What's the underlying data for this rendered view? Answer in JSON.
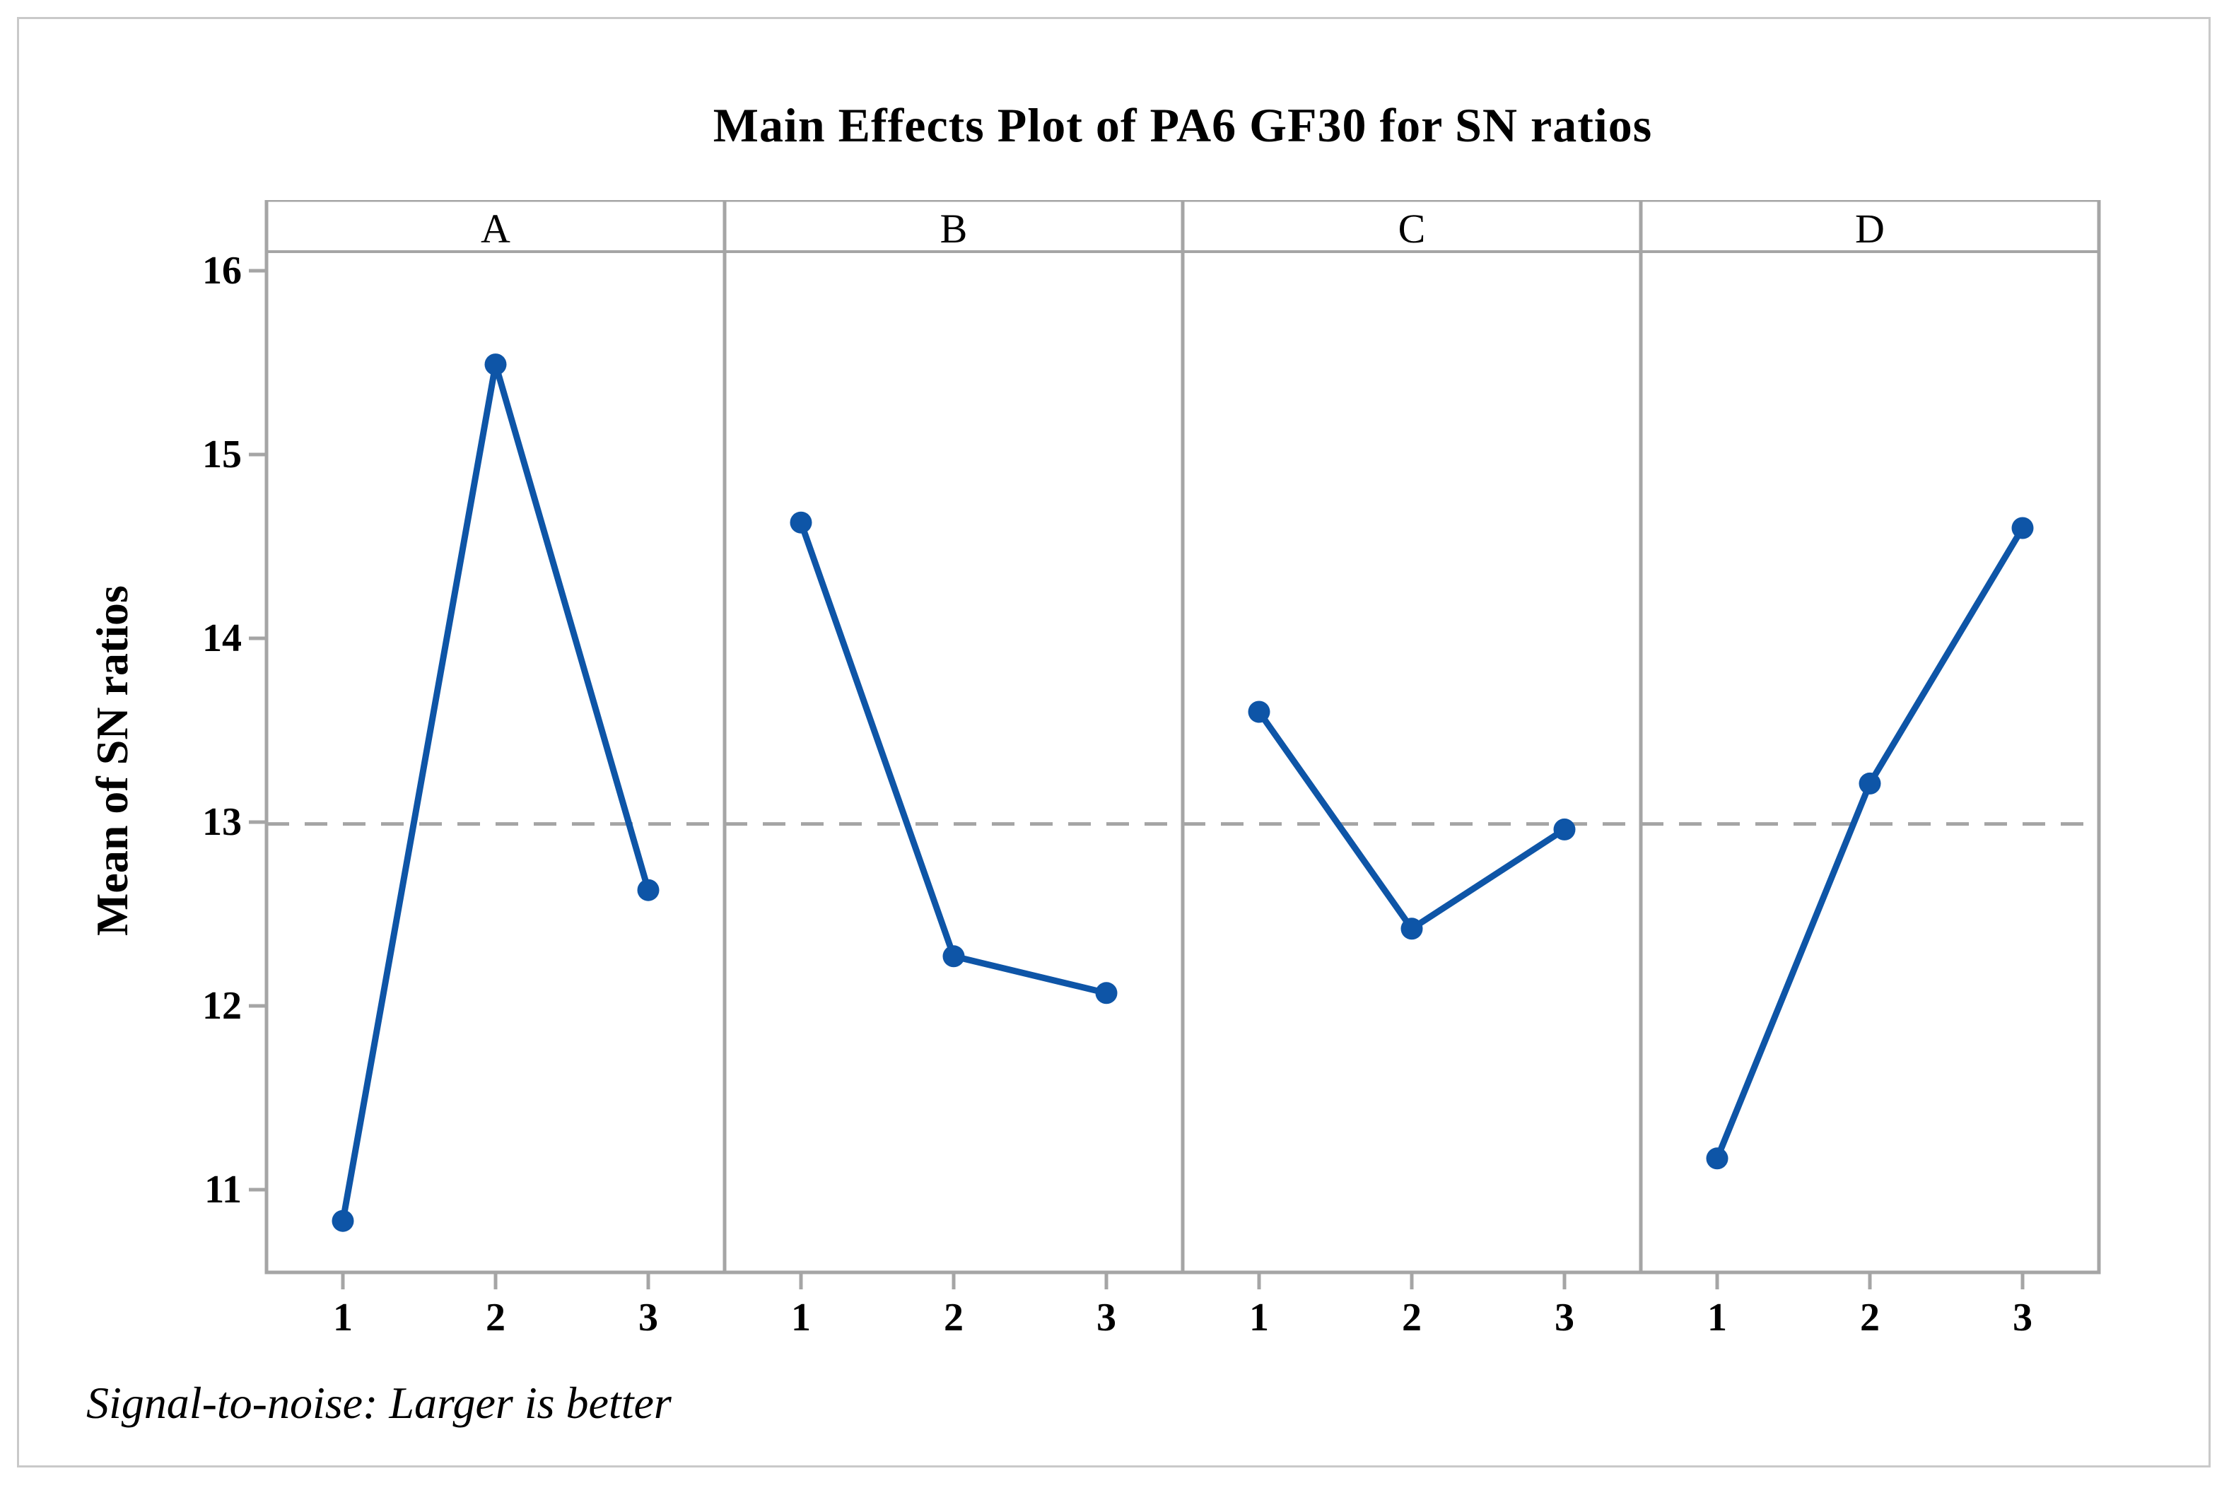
{
  "figure": {
    "title": "Main Effects Plot of PA6 GF30 for SN ratios",
    "y_axis_label": "Mean of SN ratios",
    "footnote": "Signal-to-noise: Larger is better"
  },
  "chart_data": {
    "type": "line",
    "title": "Main Effects Plot of PA6 GF30 for SN ratios",
    "xlabel": "",
    "ylabel": "Mean of SN ratios",
    "footnote": "Signal-to-noise: Larger is better",
    "x_categories": [
      "1",
      "2",
      "3"
    ],
    "panels": [
      {
        "label": "A",
        "values": [
          10.83,
          15.49,
          12.63
        ]
      },
      {
        "label": "B",
        "values": [
          14.63,
          12.27,
          12.07
        ]
      },
      {
        "label": "C",
        "values": [
          13.6,
          12.42,
          12.96
        ]
      },
      {
        "label": "D",
        "values": [
          11.17,
          13.21,
          14.6
        ]
      }
    ],
    "y_ticks": [
      11,
      12,
      13,
      14,
      15,
      16
    ],
    "ylim": [
      10.55,
      16.1
    ],
    "reference_line": 12.99,
    "grid": false,
    "legend": "none",
    "colors": {
      "series": "#0E55A7",
      "frame": "#A5A5A5",
      "reference_line": "#A5A5A5",
      "figure_border": "#C9C9C9",
      "text": "#000000"
    }
  }
}
